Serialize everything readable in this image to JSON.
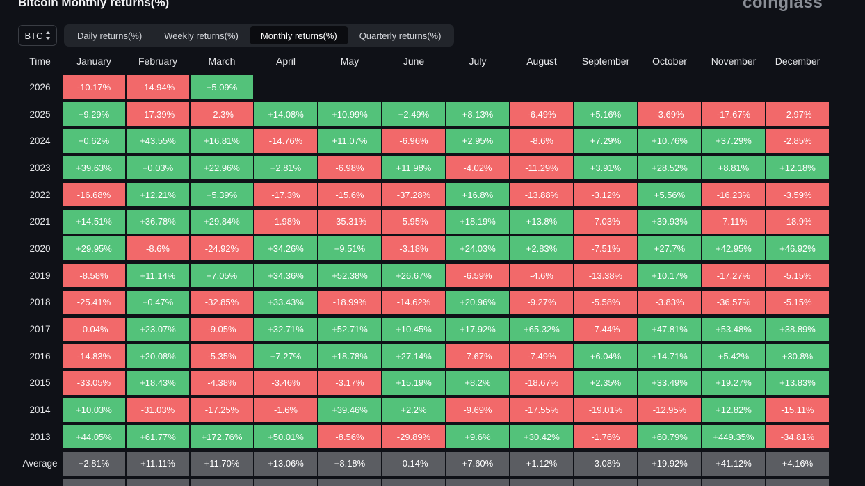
{
  "title": "Bitcoin Monthly returns(%)",
  "logo": "coinglass",
  "coin": {
    "selected": "BTC",
    "icon": "updown-icon"
  },
  "tabs": [
    {
      "label": "Daily returns(%)",
      "active": false
    },
    {
      "label": "Weekly returns(%)",
      "active": false
    },
    {
      "label": "Monthly returns(%)",
      "active": true
    },
    {
      "label": "Quarterly returns(%)",
      "active": false
    }
  ],
  "colors": {
    "positive": "#53c27a",
    "negative": "#f2696a",
    "average": "#5b5d62",
    "background": "#0f1117"
  },
  "table": {
    "time_header": "Time",
    "months": [
      "January",
      "February",
      "March",
      "April",
      "May",
      "June",
      "July",
      "August",
      "September",
      "October",
      "November",
      "December"
    ],
    "rows": [
      {
        "year": "2026",
        "values": [
          "-10.17%",
          "-14.94%",
          "+5.09%",
          "",
          "",
          "",
          "",
          "",
          "",
          "",
          "",
          ""
        ]
      },
      {
        "year": "2025",
        "values": [
          "+9.29%",
          "-17.39%",
          "-2.3%",
          "+14.08%",
          "+10.99%",
          "+2.49%",
          "+8.13%",
          "-6.49%",
          "+5.16%",
          "-3.69%",
          "-17.67%",
          "-2.97%"
        ]
      },
      {
        "year": "2024",
        "values": [
          "+0.62%",
          "+43.55%",
          "+16.81%",
          "-14.76%",
          "+11.07%",
          "-6.96%",
          "+2.95%",
          "-8.6%",
          "+7.29%",
          "+10.76%",
          "+37.29%",
          "-2.85%"
        ]
      },
      {
        "year": "2023",
        "values": [
          "+39.63%",
          "+0.03%",
          "+22.96%",
          "+2.81%",
          "-6.98%",
          "+11.98%",
          "-4.02%",
          "-11.29%",
          "+3.91%",
          "+28.52%",
          "+8.81%",
          "+12.18%"
        ]
      },
      {
        "year": "2022",
        "values": [
          "-16.68%",
          "+12.21%",
          "+5.39%",
          "-17.3%",
          "-15.6%",
          "-37.28%",
          "+16.8%",
          "-13.88%",
          "-3.12%",
          "+5.56%",
          "-16.23%",
          "-3.59%"
        ]
      },
      {
        "year": "2021",
        "values": [
          "+14.51%",
          "+36.78%",
          "+29.84%",
          "-1.98%",
          "-35.31%",
          "-5.95%",
          "+18.19%",
          "+13.8%",
          "-7.03%",
          "+39.93%",
          "-7.11%",
          "-18.9%"
        ]
      },
      {
        "year": "2020",
        "values": [
          "+29.95%",
          "-8.6%",
          "-24.92%",
          "+34.26%",
          "+9.51%",
          "-3.18%",
          "+24.03%",
          "+2.83%",
          "-7.51%",
          "+27.7%",
          "+42.95%",
          "+46.92%"
        ]
      },
      {
        "year": "2019",
        "values": [
          "-8.58%",
          "+11.14%",
          "+7.05%",
          "+34.36%",
          "+52.38%",
          "+26.67%",
          "-6.59%",
          "-4.6%",
          "-13.38%",
          "+10.17%",
          "-17.27%",
          "-5.15%"
        ]
      },
      {
        "year": "2018",
        "values": [
          "-25.41%",
          "+0.47%",
          "-32.85%",
          "+33.43%",
          "-18.99%",
          "-14.62%",
          "+20.96%",
          "-9.27%",
          "-5.58%",
          "-3.83%",
          "-36.57%",
          "-5.15%"
        ]
      },
      {
        "year": "2017",
        "values": [
          "-0.04%",
          "+23.07%",
          "-9.05%",
          "+32.71%",
          "+52.71%",
          "+10.45%",
          "+17.92%",
          "+65.32%",
          "-7.44%",
          "+47.81%",
          "+53.48%",
          "+38.89%"
        ]
      },
      {
        "year": "2016",
        "values": [
          "-14.83%",
          "+20.08%",
          "-5.35%",
          "+7.27%",
          "+18.78%",
          "+27.14%",
          "-7.67%",
          "-7.49%",
          "+6.04%",
          "+14.71%",
          "+5.42%",
          "+30.8%"
        ]
      },
      {
        "year": "2015",
        "values": [
          "-33.05%",
          "+18.43%",
          "-4.38%",
          "-3.46%",
          "-3.17%",
          "+15.19%",
          "+8.2%",
          "-18.67%",
          "+2.35%",
          "+33.49%",
          "+19.27%",
          "+13.83%"
        ]
      },
      {
        "year": "2014",
        "values": [
          "+10.03%",
          "-31.03%",
          "-17.25%",
          "-1.6%",
          "+39.46%",
          "+2.2%",
          "-9.69%",
          "-17.55%",
          "-19.01%",
          "-12.95%",
          "+12.82%",
          "-15.11%"
        ]
      },
      {
        "year": "2013",
        "values": [
          "+44.05%",
          "+61.77%",
          "+172.76%",
          "+50.01%",
          "-8.56%",
          "-29.89%",
          "+9.6%",
          "+30.42%",
          "-1.76%",
          "+60.79%",
          "+449.35%",
          "-34.81%"
        ]
      }
    ],
    "average": {
      "label": "Average",
      "values": [
        "+2.81%",
        "+11.11%",
        "+11.70%",
        "+13.06%",
        "+8.18%",
        "-0.14%",
        "+7.60%",
        "+1.12%",
        "-3.08%",
        "+19.92%",
        "+41.12%",
        "+4.16%"
      ]
    }
  }
}
